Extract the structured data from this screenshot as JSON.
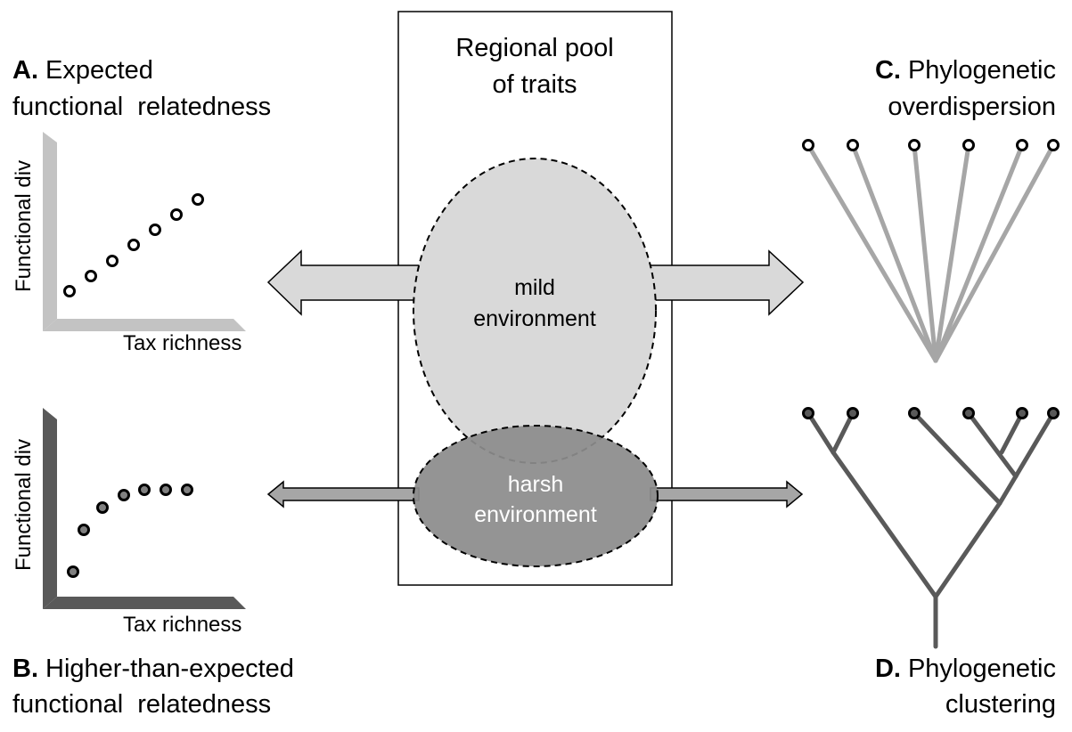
{
  "pool": {
    "line1": "Regional pool",
    "line2": "of traits"
  },
  "env": {
    "mild_line1": "mild",
    "mild_line2": "environment",
    "harsh_line1": "harsh",
    "harsh_line2": "environment"
  },
  "panels": {
    "a": {
      "letter": "A.",
      "line1": "Expected",
      "line2": "functional  relatedness"
    },
    "b": {
      "letter": "B.",
      "line1": "Higher-than-expected",
      "line2": "functional  relatedness"
    },
    "c": {
      "letter": "C.",
      "line1": "Phylogenetic",
      "line2": "overdispersion"
    },
    "d": {
      "letter": "D.",
      "line1": "Phylogenetic",
      "line2": "clustering"
    }
  },
  "plots": {
    "top": {
      "ylabel": "Functional div",
      "xlabel": "Tax richness",
      "trend": "linear"
    },
    "bottom": {
      "ylabel": "Functional div",
      "xlabel": "Tax richness",
      "trend": "saturating"
    }
  },
  "colors": {
    "mild_fill": "#d9d9d9",
    "harsh_fill": "#8c8c8c",
    "light_axis": "#c3c3c3",
    "dark_axis": "#595959",
    "light_branch": "#a6a6a6",
    "dark_branch": "#595959",
    "arrow_fill": "#d9d9d9",
    "arrow_fill_dark": "#a6a6a6"
  }
}
